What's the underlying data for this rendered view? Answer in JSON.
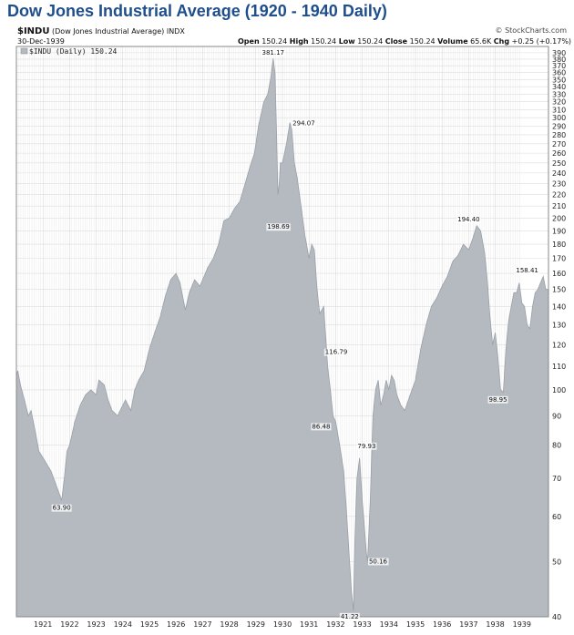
{
  "title": "Dow Jones Industrial Average (1920 - 1940 Daily)",
  "header": {
    "symbol": "$INDU",
    "name": "(Dow Jones Industrial Average)",
    "exchange": "INDX",
    "date": "30-Dec-1939",
    "open_label": "Open",
    "open": "150.24",
    "high_label": "High",
    "high": "150.24",
    "low_label": "Low",
    "low": "150.24",
    "close_label": "Close",
    "close": "150.24",
    "volume_label": "Volume",
    "volume": "65.6K",
    "chg_label": "Chg",
    "chg": "+0.25 (+0.17%)",
    "credit": "© StockCharts.com"
  },
  "chart_data": {
    "type": "area",
    "title": "Dow Jones Industrial Average (1920 - 1940 Daily)",
    "legend": "$INDU (Daily) 150.24",
    "legend_position": "top-left",
    "y_scale": "log",
    "ylim": [
      40,
      400
    ],
    "xlim": [
      1920,
      1940
    ],
    "grid": true,
    "fill_color": "#b5bac1",
    "line_color": "#9aa0a8",
    "x_ticks": [
      "1921",
      "1922",
      "1923",
      "1924",
      "1925",
      "1926",
      "1927",
      "1928",
      "1929",
      "1930",
      "1931",
      "1932",
      "1933",
      "1934",
      "1935",
      "1936",
      "1937",
      "1938",
      "1939"
    ],
    "y_ticks": [
      40,
      50,
      60,
      70,
      80,
      90,
      100,
      110,
      120,
      130,
      140,
      150,
      160,
      170,
      180,
      190,
      200,
      210,
      220,
      230,
      240,
      250,
      260,
      270,
      280,
      290,
      300,
      310,
      320,
      330,
      340,
      350,
      360,
      370,
      380,
      390
    ],
    "series": [
      {
        "x": [
          1920.0,
          1920.05,
          1920.15,
          1920.3,
          1920.45,
          1920.55,
          1920.7,
          1920.85,
          1921.0,
          1921.15,
          1921.3,
          1921.45,
          1921.6,
          1921.7,
          1921.8,
          1921.9,
          1922.0,
          1922.2,
          1922.4,
          1922.6,
          1922.8,
          1923.0,
          1923.1,
          1923.3,
          1923.45,
          1923.6,
          1923.8,
          1924.0,
          1924.1,
          1924.3,
          1924.45,
          1924.6,
          1924.8,
          1925.0,
          1925.2,
          1925.4,
          1925.6,
          1925.8,
          1926.0,
          1926.15,
          1926.35,
          1926.5,
          1926.7,
          1926.9,
          1927.0,
          1927.2,
          1927.4,
          1927.6,
          1927.8,
          1928.0,
          1928.2,
          1928.4,
          1928.6,
          1928.8,
          1928.95,
          1929.1,
          1929.3,
          1929.45,
          1929.55,
          1929.65,
          1929.72,
          1929.78,
          1929.83,
          1929.88,
          1929.92,
          1930.0,
          1930.15,
          1930.28,
          1930.35,
          1930.45,
          1930.55,
          1930.7,
          1930.85,
          1931.0,
          1931.1,
          1931.2,
          1931.3,
          1931.4,
          1931.55,
          1931.7,
          1931.8,
          1931.9,
          1932.0,
          1932.15,
          1932.3,
          1932.4,
          1932.5,
          1932.6,
          1932.67,
          1932.72,
          1932.8,
          1932.9,
          1933.0,
          1933.1,
          1933.15,
          1933.2,
          1933.3,
          1933.4,
          1933.5,
          1933.6,
          1933.7,
          1933.8,
          1933.9,
          1934.0,
          1934.1,
          1934.2,
          1934.3,
          1934.45,
          1934.6,
          1934.8,
          1935.0,
          1935.2,
          1935.4,
          1935.6,
          1935.8,
          1936.0,
          1936.2,
          1936.4,
          1936.6,
          1936.8,
          1937.0,
          1937.15,
          1937.3,
          1937.45,
          1937.6,
          1937.7,
          1937.8,
          1937.9,
          1938.0,
          1938.1,
          1938.2,
          1938.3,
          1938.4,
          1938.5,
          1938.6,
          1938.7,
          1938.8,
          1938.9,
          1939.0,
          1939.1,
          1939.2,
          1939.3,
          1939.4,
          1939.5,
          1939.6,
          1939.7,
          1939.8,
          1939.9,
          1940.0
        ],
        "values": [
          106,
          108,
          102,
          96,
          90,
          92,
          85,
          78,
          76,
          74,
          72,
          69,
          66,
          64,
          70,
          78,
          80,
          88,
          94,
          98,
          100,
          98,
          104,
          102,
          96,
          92,
          90,
          94,
          96,
          92,
          100,
          104,
          108,
          118,
          126,
          134,
          146,
          156,
          160,
          154,
          138,
          148,
          156,
          152,
          156,
          164,
          170,
          180,
          198,
          200,
          208,
          214,
          230,
          248,
          260,
          290,
          320,
          330,
          350,
          381,
          360,
          280,
          220,
          230,
          250,
          250,
          270,
          294,
          286,
          250,
          236,
          210,
          186,
          170,
          180,
          176,
          150,
          136,
          140,
          110,
          100,
          90,
          88,
          80,
          72,
          62,
          52,
          44,
          41,
          54,
          70,
          76,
          64,
          56,
          52,
          50,
          64,
          90,
          100,
          104,
          94,
          98,
          104,
          100,
          106,
          104,
          98,
          94,
          92,
          98,
          104,
          118,
          130,
          140,
          145,
          152,
          158,
          168,
          172,
          180,
          176,
          184,
          194,
          190,
          174,
          156,
          134,
          120,
          126,
          114,
          100,
          99,
          118,
          132,
          140,
          148,
          148,
          154,
          142,
          140,
          130,
          128,
          140,
          148,
          150,
          154,
          158,
          150,
          150
        ]
      }
    ],
    "annotations": [
      {
        "label": "381.17",
        "x": 1929.65,
        "value": 381.17,
        "pos": "above"
      },
      {
        "label": "294.07",
        "x": 1930.28,
        "value": 294.07,
        "pos": "right"
      },
      {
        "label": "198.69",
        "x": 1929.85,
        "value": 198.69,
        "pos": "below"
      },
      {
        "label": "63.90",
        "x": 1921.7,
        "value": 63.9,
        "pos": "below"
      },
      {
        "label": "116.79",
        "x": 1931.5,
        "value": 116.79,
        "pos": "right"
      },
      {
        "label": "86.48",
        "x": 1931.9,
        "value": 86.48,
        "pos": "left"
      },
      {
        "label": "79.93",
        "x": 1932.72,
        "value": 79.93,
        "pos": "right"
      },
      {
        "label": "41.22",
        "x": 1932.53,
        "value": 41.22,
        "pos": "below"
      },
      {
        "label": "50.16",
        "x": 1933.15,
        "value": 50.16,
        "pos": "right"
      },
      {
        "label": "194.40",
        "x": 1937.0,
        "value": 194.4,
        "pos": "above"
      },
      {
        "label": "158.41",
        "x": 1939.2,
        "value": 158.41,
        "pos": "above"
      },
      {
        "label": "98.95",
        "x": 1938.1,
        "value": 98.95,
        "pos": "below"
      }
    ]
  }
}
